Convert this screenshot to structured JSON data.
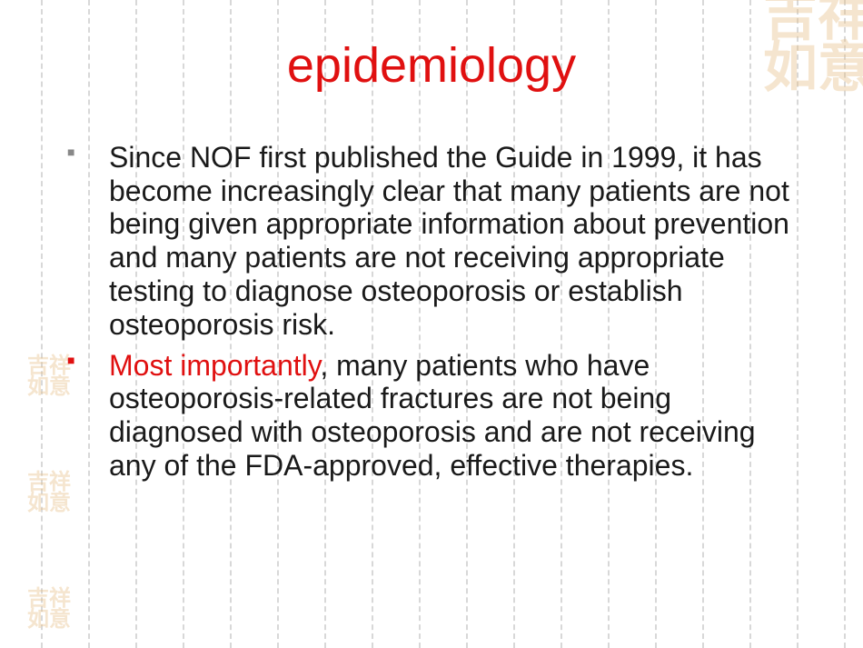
{
  "slide": {
    "title": "epidemiology",
    "title_color": "#e01010",
    "title_fontsize": 54,
    "body_fontsize": 32,
    "body_color": "#1a1a1a",
    "emphasis_color": "#e01010",
    "bullets": [
      {
        "emphasis": "",
        "text": "Since NOF first published the Guide in 1999, it has become increasingly clear that many patients are not being given appropriate information about prevention and many patients are not receiving appropriate testing to diagnose osteoporosis or establish osteoporosis risk.",
        "marker_color": "#888888"
      },
      {
        "emphasis": "Most importantly",
        "text": ", many patients who have osteoporosis-related fractures are not being diagnosed with osteoporosis and are not receiving any of the FDA-approved, effective therapies.",
        "marker_color": "#e01010"
      }
    ]
  },
  "background": {
    "grid_line_color": "#d8d8d8",
    "grid_line_count": 18,
    "grid_line_spacing": 52,
    "grid_line_start": 45,
    "watermark_color": "#e8c088",
    "watermark_text_tr": "吉祥\n如意",
    "watermark_text_small": "吉祥\n如意"
  }
}
